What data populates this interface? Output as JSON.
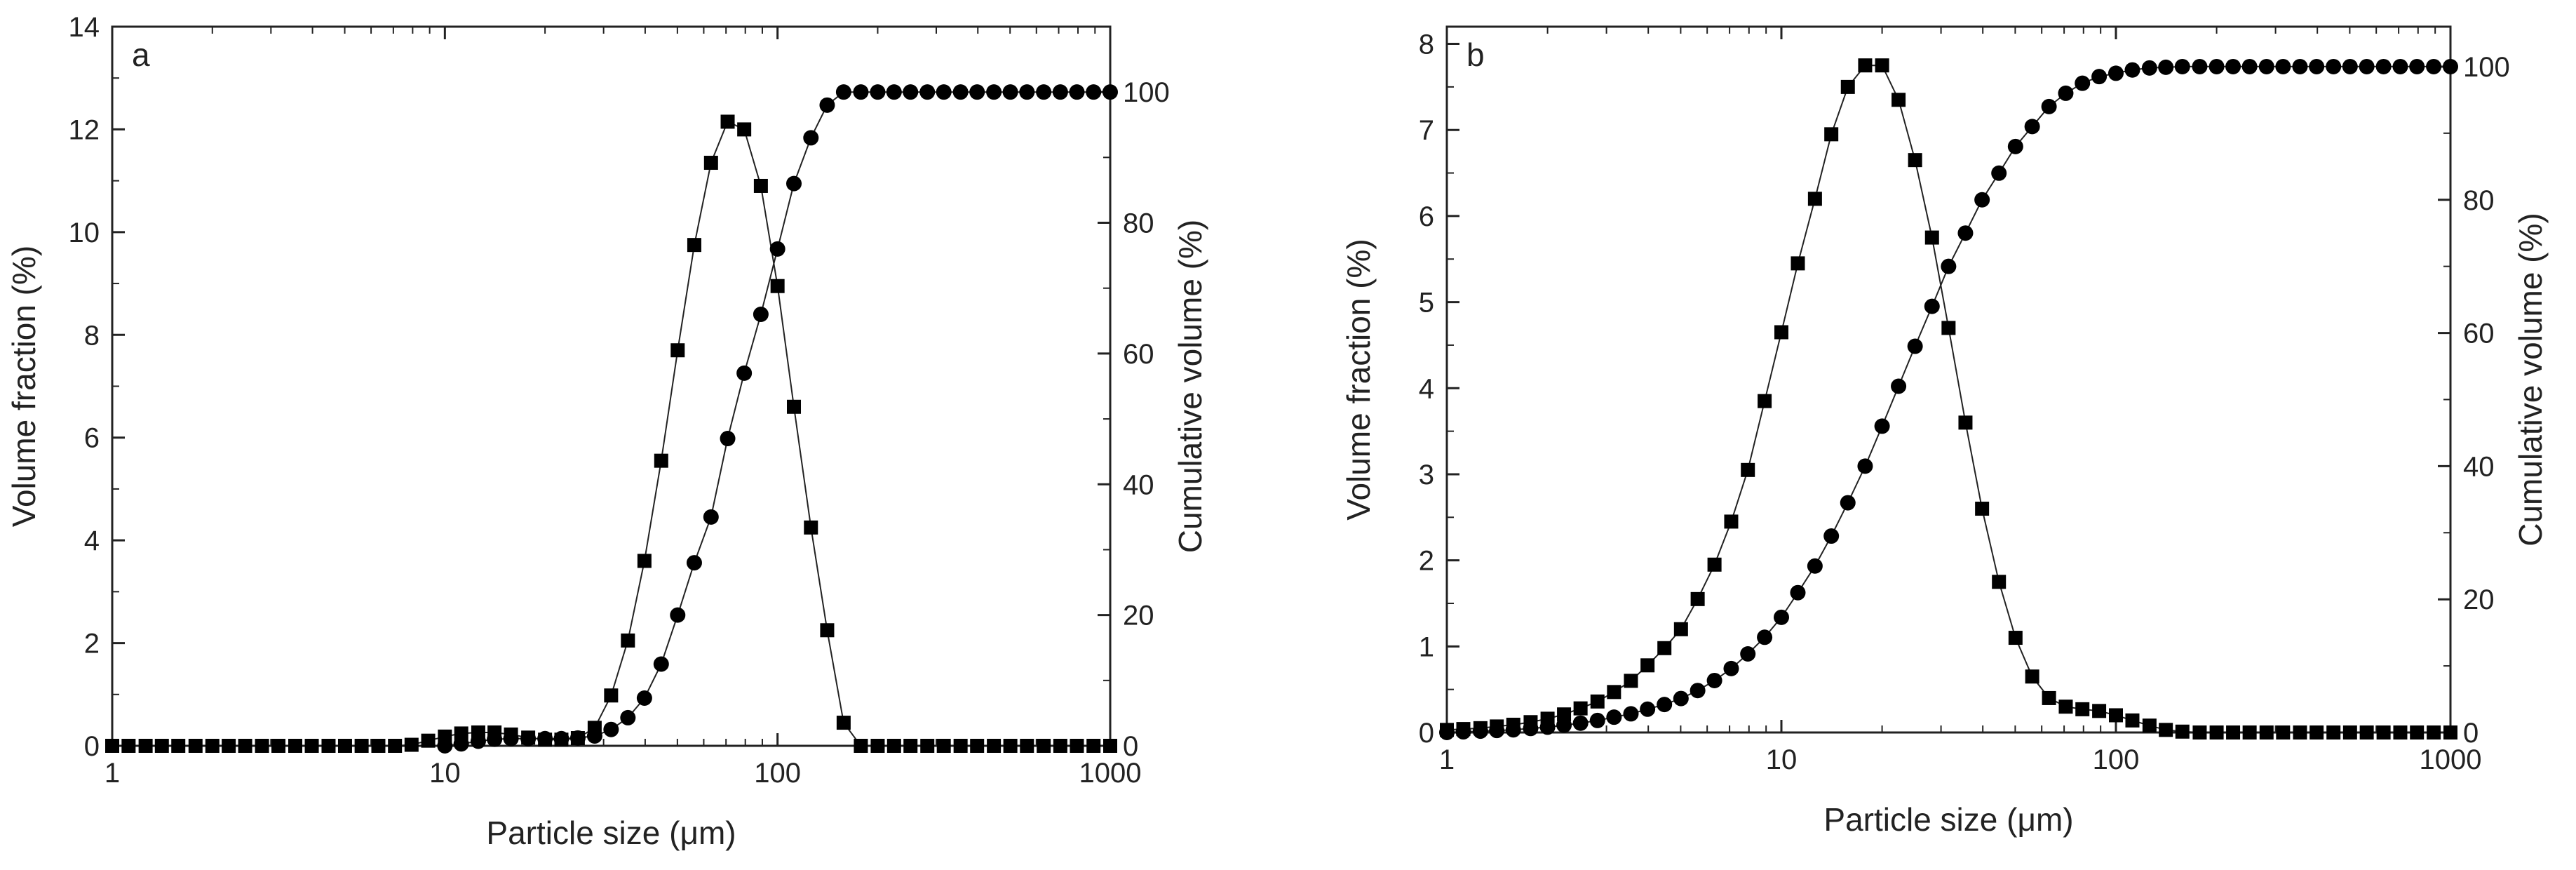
{
  "chart_data": [
    {
      "type": "scatter",
      "panel_label": "a",
      "xlabel": "Particle size (μm)",
      "ylabel": "Volume fraction (%)",
      "y2label": "Cumulative volume (%)",
      "x_scale": "log",
      "xlim": [
        1,
        1000
      ],
      "ylim": [
        0,
        14
      ],
      "y2lim": [
        0,
        110
      ],
      "x_ticks": [
        1,
        10,
        100,
        1000
      ],
      "x_tick_labels": [
        "1",
        "10",
        "100",
        "1000"
      ],
      "y_ticks": [
        0,
        2,
        4,
        6,
        8,
        10,
        12,
        14
      ],
      "y_tick_labels": [
        "0",
        "2",
        "4",
        "6",
        "8",
        "10",
        "12",
        "14"
      ],
      "y2_ticks": [
        0,
        20,
        40,
        60,
        80,
        100
      ],
      "y2_tick_labels": [
        "0",
        "20",
        "40",
        "60",
        "80",
        "100"
      ],
      "grid": false,
      "series": [
        {
          "marker": "square",
          "axis": "left",
          "x": [
            1.0,
            1.12,
            1.26,
            1.41,
            1.58,
            1.78,
            2.0,
            2.24,
            2.51,
            2.82,
            3.16,
            3.55,
            3.98,
            4.47,
            5.01,
            5.62,
            6.31,
            7.08,
            7.94,
            8.91,
            10.0,
            11.2,
            12.6,
            14.1,
            15.8,
            17.8,
            20.0,
            22.4,
            25.1,
            28.2,
            31.6,
            35.5,
            39.8,
            44.7,
            50.1,
            56.2,
            63.1,
            70.8,
            79.4,
            89.1,
            100,
            112,
            126,
            141,
            158,
            178,
            200,
            224,
            251,
            282,
            316,
            355,
            398,
            447,
            501,
            562,
            631,
            708,
            794,
            891,
            1000
          ],
          "values": [
            0,
            0,
            0,
            0,
            0,
            0,
            0,
            0,
            0,
            0,
            0,
            0,
            0,
            0,
            0,
            0,
            0,
            0,
            0.02,
            0.1,
            0.18,
            0.24,
            0.26,
            0.26,
            0.22,
            0.16,
            0.12,
            0.12,
            0.15,
            0.35,
            0.98,
            2.05,
            3.6,
            5.55,
            7.7,
            9.75,
            11.35,
            12.15,
            12.0,
            10.9,
            8.95,
            6.6,
            4.25,
            2.25,
            0.45,
            0,
            0,
            0,
            0,
            0,
            0,
            0,
            0,
            0,
            0,
            0,
            0,
            0,
            0,
            0,
            0
          ]
        },
        {
          "marker": "circle",
          "axis": "right",
          "x": [
            10.0,
            11.2,
            12.6,
            14.1,
            15.8,
            17.8,
            20.0,
            22.4,
            25.1,
            28.2,
            31.6,
            35.5,
            39.8,
            44.7,
            50.1,
            56.2,
            63.1,
            70.8,
            79.4,
            89.1,
            100,
            112,
            126,
            141,
            158,
            178,
            200,
            224,
            251,
            282,
            316,
            355,
            398,
            447,
            501,
            562,
            631,
            708,
            794,
            891,
            1000
          ],
          "values": [
            0,
            0.3,
            0.7,
            1.0,
            1.1,
            1.1,
            1.1,
            1.1,
            1.2,
            1.5,
            2.5,
            4.3,
            7.3,
            12.5,
            20,
            28,
            35,
            47,
            57,
            66,
            76,
            86,
            93,
            98,
            100,
            100,
            100,
            100,
            100,
            100,
            100,
            100,
            100,
            100,
            100,
            100,
            100,
            100,
            100,
            100,
            100
          ]
        }
      ]
    },
    {
      "type": "scatter",
      "panel_label": "b",
      "xlabel": "Particle size (μm)",
      "ylabel": "Volume fraction (%)",
      "y2label": "Cumulative volume (%)",
      "x_scale": "log",
      "xlim": [
        1,
        1000
      ],
      "ylim": [
        0,
        8.2
      ],
      "y2lim": [
        0,
        106
      ],
      "x_ticks": [
        1,
        10,
        100,
        1000
      ],
      "x_tick_labels": [
        "1",
        "10",
        "100",
        "1000"
      ],
      "y_ticks": [
        0,
        1,
        2,
        3,
        4,
        5,
        6,
        7,
        8
      ],
      "y_tick_labels": [
        "0",
        "1",
        "2",
        "3",
        "4",
        "5",
        "6",
        "7",
        "8"
      ],
      "y2_ticks": [
        0,
        20,
        40,
        60,
        80,
        100
      ],
      "y2_tick_labels": [
        "0",
        "20",
        "40",
        "60",
        "80",
        "100"
      ],
      "grid": false,
      "series": [
        {
          "marker": "square",
          "axis": "left",
          "x": [
            1.0,
            1.12,
            1.26,
            1.41,
            1.58,
            1.78,
            2.0,
            2.24,
            2.51,
            2.82,
            3.16,
            3.55,
            3.98,
            4.47,
            5.01,
            5.62,
            6.31,
            7.08,
            7.94,
            8.91,
            10.0,
            11.2,
            12.6,
            14.1,
            15.8,
            17.8,
            20.0,
            22.4,
            25.1,
            28.2,
            31.6,
            35.5,
            39.8,
            44.7,
            50.1,
            56.2,
            63.1,
            70.8,
            79.4,
            89.1,
            100,
            112,
            126,
            141,
            158,
            178,
            200,
            224,
            251,
            282,
            316,
            355,
            398,
            447,
            501,
            562,
            631,
            708,
            794,
            891,
            1000
          ],
          "values": [
            0.03,
            0.04,
            0.05,
            0.07,
            0.09,
            0.12,
            0.16,
            0.21,
            0.28,
            0.36,
            0.47,
            0.6,
            0.78,
            0.98,
            1.2,
            1.55,
            1.95,
            2.45,
            3.05,
            3.85,
            4.65,
            5.45,
            6.2,
            6.95,
            7.5,
            7.75,
            7.75,
            7.35,
            6.65,
            5.75,
            4.7,
            3.6,
            2.6,
            1.75,
            1.1,
            0.65,
            0.4,
            0.3,
            0.27,
            0.25,
            0.2,
            0.14,
            0.08,
            0.03,
            0.01,
            0.0,
            0.0,
            0.0,
            0.0,
            0.0,
            0.0,
            0.0,
            0.0,
            0.0,
            0.0,
            0.0,
            0.0,
            0.0,
            0.0,
            0.0,
            0.0
          ],
          "x_override": true
        },
        {
          "marker": "circle",
          "axis": "right",
          "x": [
            1.0,
            1.12,
            1.26,
            1.41,
            1.58,
            1.78,
            2.0,
            2.24,
            2.51,
            2.82,
            3.16,
            3.55,
            3.98,
            4.47,
            5.01,
            5.62,
            6.31,
            7.08,
            7.94,
            8.91,
            10.0,
            11.2,
            12.6,
            14.1,
            15.8,
            17.8,
            20.0,
            22.4,
            25.1,
            28.2,
            31.6,
            35.5,
            39.8,
            44.7,
            50.1,
            56.2,
            63.1,
            70.8,
            79.4,
            89.1,
            100,
            112,
            126,
            141,
            158,
            178,
            200,
            224,
            251,
            282,
            316,
            355,
            398,
            447,
            501,
            562,
            631,
            708,
            794,
            891,
            1000
          ],
          "values": [
            0.0,
            0.1,
            0.2,
            0.3,
            0.4,
            0.6,
            0.8,
            1.1,
            1.4,
            1.8,
            2.3,
            2.8,
            3.5,
            4.2,
            5.1,
            6.3,
            7.8,
            9.6,
            11.8,
            14.3,
            17.3,
            21.0,
            25.0,
            29.5,
            34.5,
            40.0,
            46.0,
            52.0,
            58.0,
            64.0,
            70.0,
            75.0,
            80.0,
            84.0,
            88.0,
            91.0,
            94.0,
            96.0,
            97.5,
            98.5,
            99.0,
            99.5,
            99.8,
            99.9,
            100,
            100,
            100,
            100,
            100,
            100,
            100,
            100,
            100,
            100,
            100,
            100,
            100,
            100,
            100,
            100,
            100
          ]
        }
      ]
    }
  ]
}
